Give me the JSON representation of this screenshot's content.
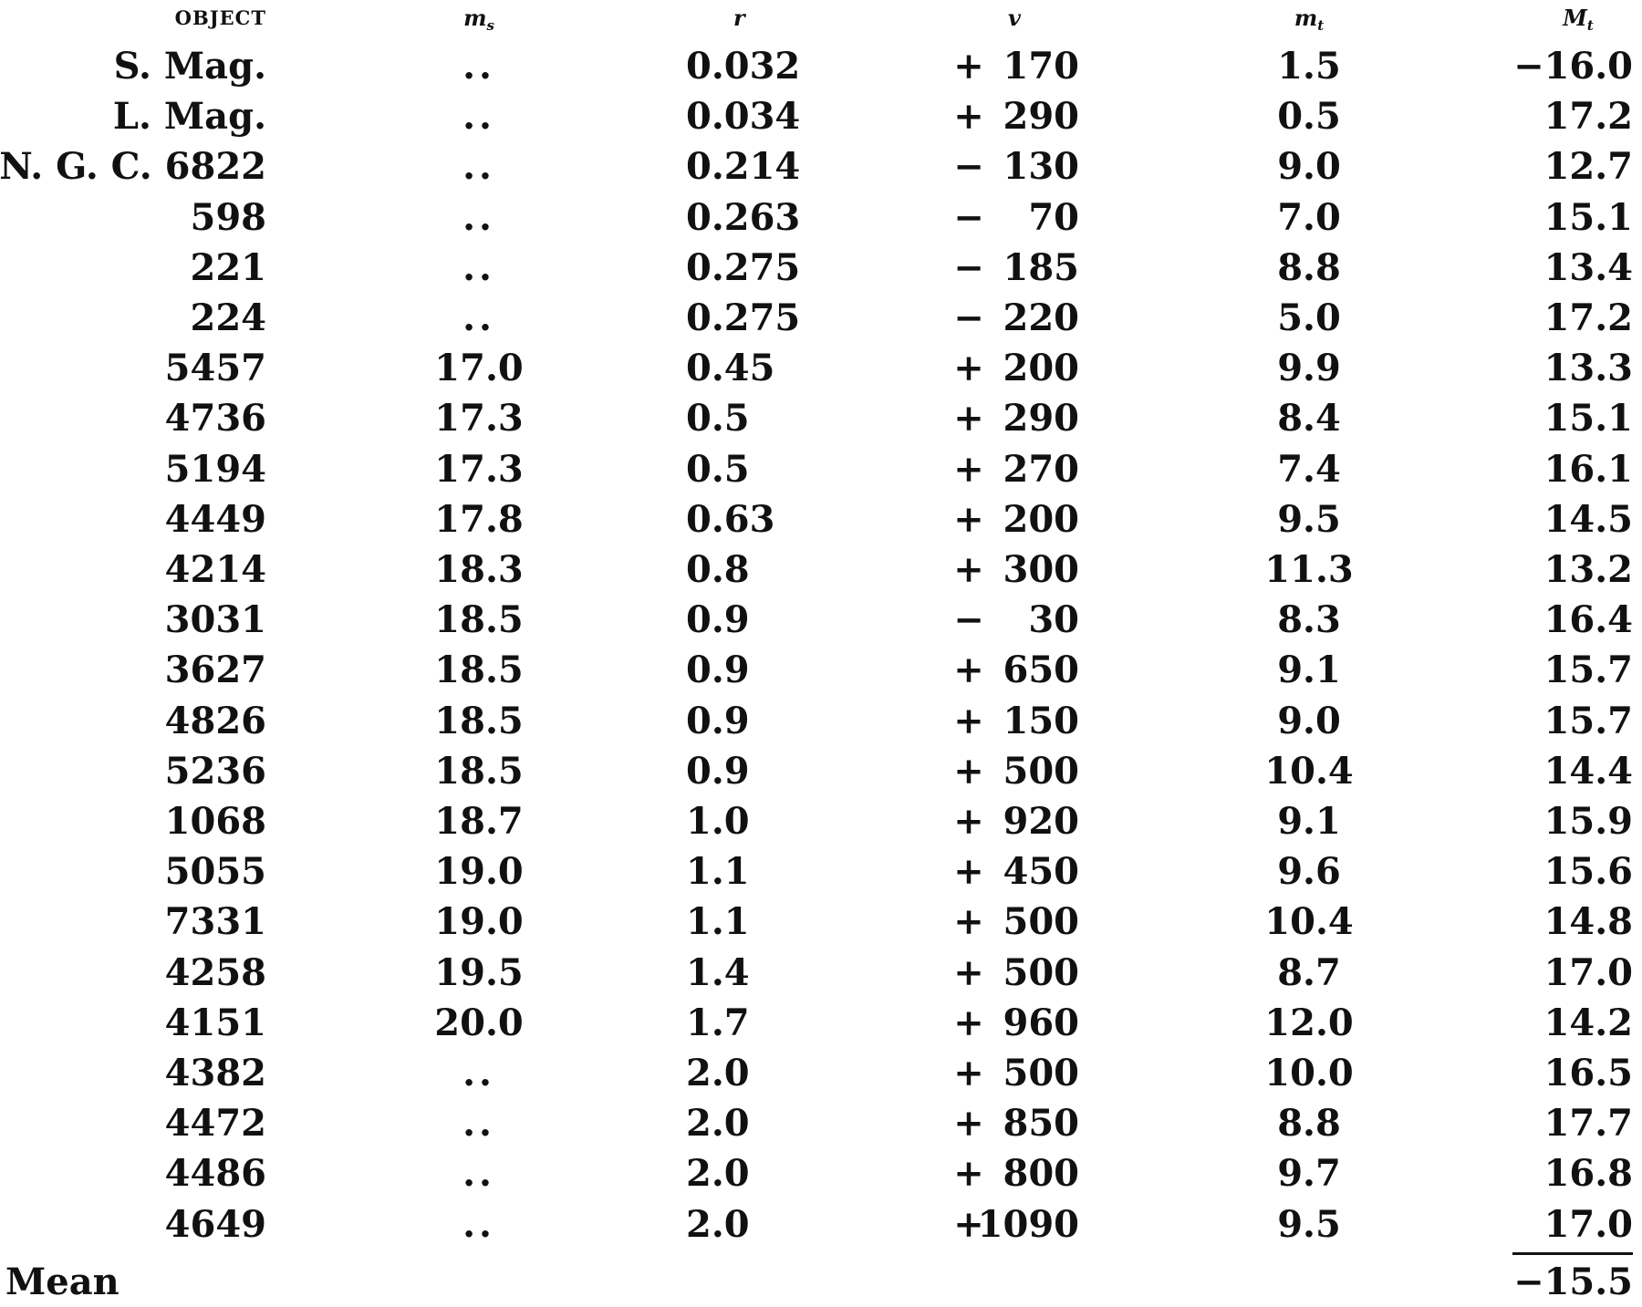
{
  "headers": {
    "object": "OBJECT",
    "ms_main": "m",
    "ms_sub": "s",
    "r": "r",
    "v": "v",
    "mt_main": "m",
    "mt_sub": "t",
    "Mt_main": "M",
    "Mt_sub": "t"
  },
  "rows": [
    {
      "object": "S. Mag.",
      "ms": "..",
      "r": "0.032",
      "v_sign": "+",
      "v_num": "170",
      "mt": "1.5",
      "Mt": "−16.0"
    },
    {
      "object": "L. Mag.",
      "ms": "..",
      "r": "0.034",
      "v_sign": "+",
      "v_num": "290",
      "mt": "0.5",
      "Mt": "17.2"
    },
    {
      "object": "N. G. C. 6822",
      "ms": "..",
      "r": "0.214",
      "v_sign": "−",
      "v_num": "130",
      "mt": "9.0",
      "Mt": "12.7"
    },
    {
      "object": "598",
      "ms": "..",
      "r": "0.263",
      "v_sign": "−",
      "v_num": "70",
      "mt": "7.0",
      "Mt": "15.1"
    },
    {
      "object": "221",
      "ms": "..",
      "r": "0.275",
      "v_sign": "−",
      "v_num": "185",
      "mt": "8.8",
      "Mt": "13.4"
    },
    {
      "object": "224",
      "ms": "..",
      "r": "0.275",
      "v_sign": "−",
      "v_num": "220",
      "mt": "5.0",
      "Mt": "17.2"
    },
    {
      "object": "5457",
      "ms": "17.0",
      "r": "0.45",
      "v_sign": "+",
      "v_num": "200",
      "mt": "9.9",
      "Mt": "13.3"
    },
    {
      "object": "4736",
      "ms": "17.3",
      "r": "0.5",
      "v_sign": "+",
      "v_num": "290",
      "mt": "8.4",
      "Mt": "15.1"
    },
    {
      "object": "5194",
      "ms": "17.3",
      "r": "0.5",
      "v_sign": "+",
      "v_num": "270",
      "mt": "7.4",
      "Mt": "16.1"
    },
    {
      "object": "4449",
      "ms": "17.8",
      "r": "0.63",
      "v_sign": "+",
      "v_num": "200",
      "mt": "9.5",
      "Mt": "14.5"
    },
    {
      "object": "4214",
      "ms": "18.3",
      "r": "0.8",
      "v_sign": "+",
      "v_num": "300",
      "mt": "11.3",
      "Mt": "13.2"
    },
    {
      "object": "3031",
      "ms": "18.5",
      "r": "0.9",
      "v_sign": "−",
      "v_num": "30",
      "mt": "8.3",
      "Mt": "16.4"
    },
    {
      "object": "3627",
      "ms": "18.5",
      "r": "0.9",
      "v_sign": "+",
      "v_num": "650",
      "mt": "9.1",
      "Mt": "15.7"
    },
    {
      "object": "4826",
      "ms": "18.5",
      "r": "0.9",
      "v_sign": "+",
      "v_num": "150",
      "mt": "9.0",
      "Mt": "15.7"
    },
    {
      "object": "5236",
      "ms": "18.5",
      "r": "0.9",
      "v_sign": "+",
      "v_num": "500",
      "mt": "10.4",
      "Mt": "14.4"
    },
    {
      "object": "1068",
      "ms": "18.7",
      "r": "1.0",
      "v_sign": "+",
      "v_num": "920",
      "mt": "9.1",
      "Mt": "15.9"
    },
    {
      "object": "5055",
      "ms": "19.0",
      "r": "1.1",
      "v_sign": "+",
      "v_num": "450",
      "mt": "9.6",
      "Mt": "15.6"
    },
    {
      "object": "7331",
      "ms": "19.0",
      "r": "1.1",
      "v_sign": "+",
      "v_num": "500",
      "mt": "10.4",
      "Mt": "14.8"
    },
    {
      "object": "4258",
      "ms": "19.5",
      "r": "1.4",
      "v_sign": "+",
      "v_num": "500",
      "mt": "8.7",
      "Mt": "17.0"
    },
    {
      "object": "4151",
      "ms": "20.0",
      "r": "1.7",
      "v_sign": "+",
      "v_num": "960",
      "mt": "12.0",
      "Mt": "14.2"
    },
    {
      "object": "4382",
      "ms": "..",
      "r": "2.0",
      "v_sign": "+",
      "v_num": "500",
      "mt": "10.0",
      "Mt": "16.5"
    },
    {
      "object": "4472",
      "ms": "..",
      "r": "2.0",
      "v_sign": "+",
      "v_num": "850",
      "mt": "8.8",
      "Mt": "17.7"
    },
    {
      "object": "4486",
      "ms": "..",
      "r": "2.0",
      "v_sign": "+",
      "v_num": "800",
      "mt": "9.7",
      "Mt": "16.8"
    },
    {
      "object": "4649",
      "ms": "..",
      "r": "2.0",
      "v_sign": "+",
      "v_num": "1090",
      "mt": "9.5",
      "Mt": "17.0"
    }
  ],
  "mean": {
    "label": "Mean",
    "value": "−15.5"
  }
}
